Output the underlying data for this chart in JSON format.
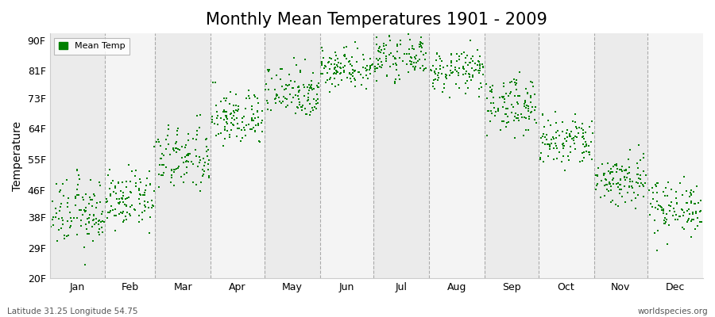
{
  "title": "Monthly Mean Temperatures 1901 - 2009",
  "ylabel": "Temperature",
  "yticks": [
    20,
    29,
    38,
    46,
    55,
    64,
    73,
    81,
    90
  ],
  "ytick_labels": [
    "20F",
    "29F",
    "38F",
    "46F",
    "55F",
    "64F",
    "73F",
    "81F",
    "90F"
  ],
  "ylim": [
    20,
    92
  ],
  "months": [
    "Jan",
    "Feb",
    "Mar",
    "Apr",
    "May",
    "Jun",
    "Jul",
    "Aug",
    "Sep",
    "Oct",
    "Nov",
    "Dec"
  ],
  "dot_color": "#008000",
  "dot_size": 3,
  "legend_label": "Mean Temp",
  "background_color": "#FFFFFF",
  "plot_bg_even": "#EBEBEB",
  "plot_bg_odd": "#F4F4F4",
  "grid_color": "#999999",
  "title_fontsize": 15,
  "axis_fontsize": 10,
  "tick_fontsize": 9,
  "footer_left": "Latitude 31.25 Longitude 54.75",
  "footer_right": "worldspecies.org",
  "month_mean_F": [
    39,
    43,
    55,
    67,
    75,
    82,
    85,
    81,
    71,
    60,
    49,
    41
  ],
  "month_std_F": [
    5,
    4,
    5,
    4,
    4,
    3,
    3,
    3,
    4,
    4,
    4,
    4
  ],
  "n_years": 109,
  "days_in_month": [
    31,
    28,
    31,
    30,
    31,
    30,
    31,
    31,
    30,
    31,
    30,
    31
  ]
}
